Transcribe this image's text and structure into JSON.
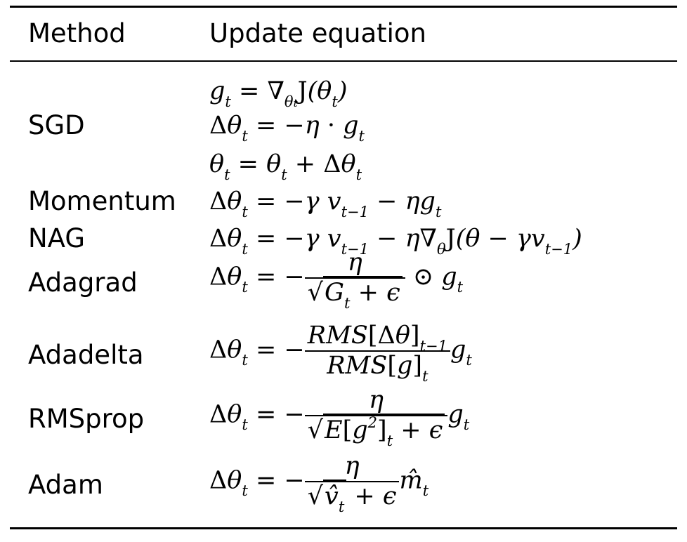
{
  "header": {
    "col_method": "Method",
    "col_update": "Update equation"
  },
  "methods": [
    "SGD",
    "Momentum",
    "NAG",
    "Adagrad",
    "Adadelta",
    "RMSprop",
    "Adam"
  ],
  "equations": {
    "sgd_1": "g_t = ∇_θ_t J(θ_t)",
    "sgd_2": "Δθ_t = −η · g_t",
    "sgd_3": "θ_t = θ_t + Δθ_t",
    "momentum": "Δθ_t = −γ v_t−1 − ηg_t",
    "nag": "Δθ_t = −γ v_t−1 − η∇_θ J(θ − γv_t−1)",
    "adagrad": "Δθ_t = − η / √(G_t + ϵ) ⊙ g_t",
    "adadelta": "Δθ_t = − RMS[Δθ]_t−1 / RMS[g]_t g_t",
    "rmsprop": "Δθ_t = − η / √(E[g^2]_t + ϵ) g_t",
    "adam": "Δθ_t = − η / (√(v̂_t) + ϵ) m̂_t"
  }
}
